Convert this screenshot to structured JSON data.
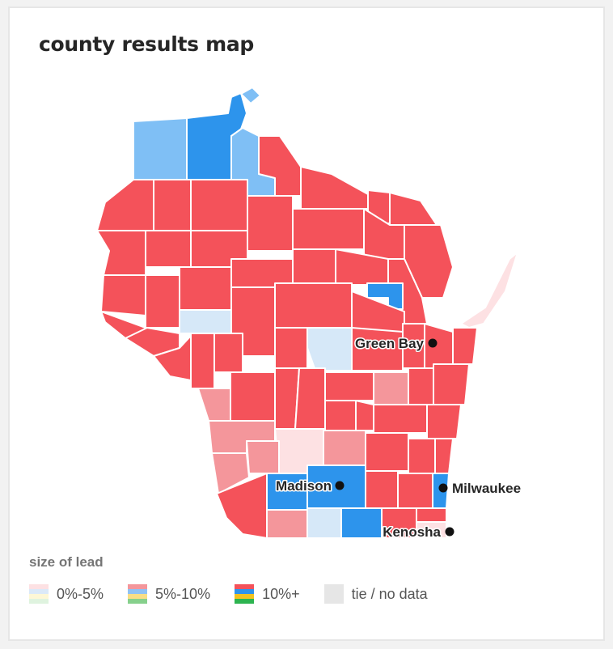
{
  "title": "county results map",
  "legend": {
    "title": "size of lead",
    "items": [
      {
        "label": "0%-5%",
        "colors": [
          "#fde1e3",
          "#dbe9f8",
          "#fdf7d6",
          "#dff3df"
        ]
      },
      {
        "label": "5%-10%",
        "colors": [
          "#f4969b",
          "#8fc2f4",
          "#f8de86",
          "#86d08c"
        ]
      },
      {
        "label": "10%+",
        "colors": [
          "#f4525a",
          "#2d94ec",
          "#f2c320",
          "#2db450"
        ]
      },
      {
        "label": "tie / no data",
        "colors": [
          "#e6e6e6"
        ]
      }
    ]
  },
  "colors": {
    "rep_strong": "#f4525a",
    "rep_lean": "#f4969b",
    "rep_tilt": "#fde1e3",
    "dem_strong": "#2d94ec",
    "dem_lean": "#7fbff5",
    "dem_tilt": "#d6e8f8"
  },
  "cities": [
    {
      "name": "Green Bay"
    },
    {
      "name": "Madison"
    },
    {
      "name": "Milwaukee"
    },
    {
      "name": "Kenosha"
    }
  ]
}
